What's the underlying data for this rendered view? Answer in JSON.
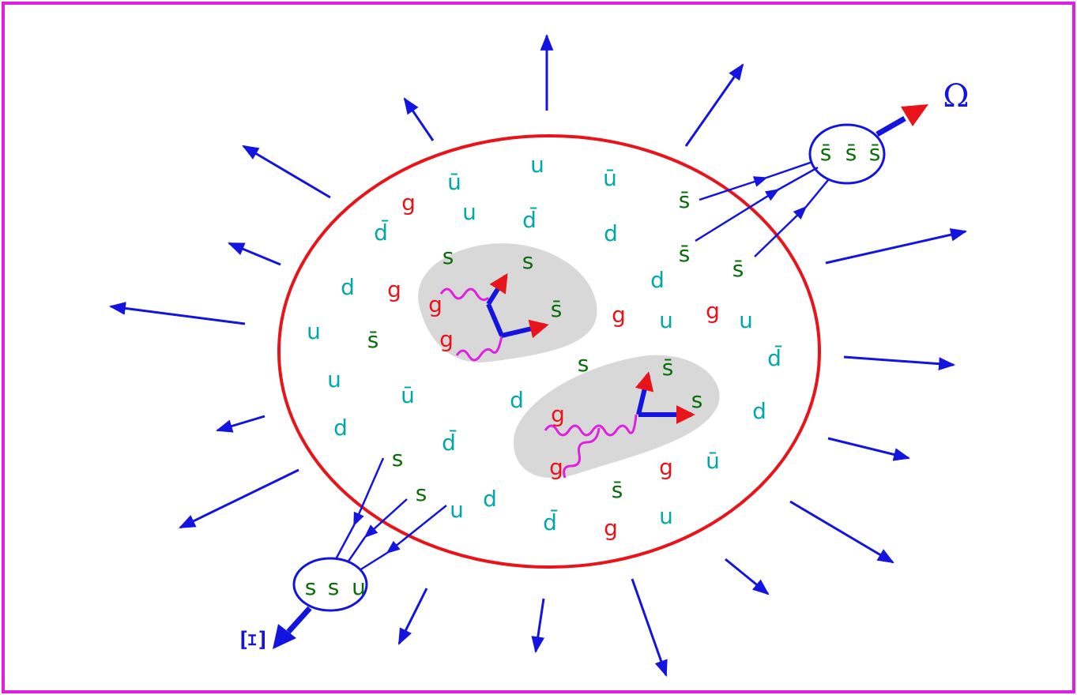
{
  "particles": [
    "u",
    "ū",
    "ū",
    "g",
    "u",
    "d̄",
    "d",
    "s̄",
    "d̄",
    "s",
    "s",
    "s̄",
    "s̄",
    "d",
    "g",
    "g",
    "s̄",
    "d",
    "g",
    "u",
    "g",
    "u",
    "u",
    "s̄",
    "g",
    "s",
    "s̄",
    "d̄",
    "u",
    "ū",
    "d",
    "s",
    "g",
    "d",
    "d",
    "d̄",
    "s",
    "g",
    "ū",
    "g",
    "s",
    "s̄",
    "d",
    "u",
    "u",
    "d̄",
    "g"
  ],
  "omega_cluster": [
    "s̄",
    "s̄",
    "s̄"
  ],
  "xi_cluster": [
    "s",
    "s",
    "u"
  ],
  "omega_label": "Ω",
  "xi_label": "Ξ"
}
